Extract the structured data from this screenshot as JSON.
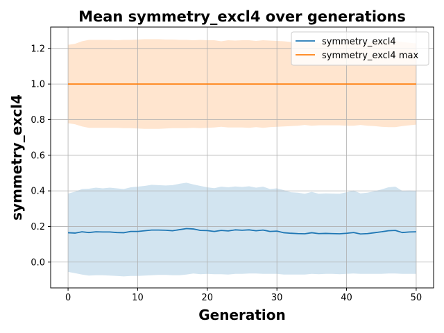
{
  "chart_data": {
    "type": "line",
    "title": "Mean symmetry_excl4 over generations",
    "xlabel": "Generation",
    "ylabel": "symmetry_excl4",
    "xlim": [
      -2.5,
      52.5
    ],
    "ylim": [
      -0.145,
      1.32
    ],
    "x_ticks": [
      0,
      10,
      20,
      30,
      40,
      50
    ],
    "y_ticks": [
      0.0,
      0.2,
      0.4,
      0.6,
      0.8,
      1.0,
      1.2
    ],
    "x_tick_labels": [
      "0",
      "10",
      "20",
      "30",
      "40",
      "50"
    ],
    "y_tick_labels": [
      "0.0",
      "0.2",
      "0.4",
      "0.6",
      "0.8",
      "1.0",
      "1.2"
    ],
    "grid": true,
    "legend_position": "top-right",
    "x": [
      0,
      1,
      2,
      3,
      4,
      5,
      6,
      7,
      8,
      9,
      10,
      11,
      12,
      13,
      14,
      15,
      16,
      17,
      18,
      19,
      20,
      21,
      22,
      23,
      24,
      25,
      26,
      27,
      28,
      29,
      30,
      31,
      32,
      33,
      34,
      35,
      36,
      37,
      38,
      39,
      40,
      41,
      42,
      43,
      44,
      45,
      46,
      47,
      48,
      49,
      50
    ],
    "series": [
      {
        "name": "symmetry_excl4",
        "color": "#1f77b4",
        "band_color": "#1f77b4",
        "values": [
          0.165,
          0.163,
          0.17,
          0.166,
          0.17,
          0.169,
          0.169,
          0.166,
          0.165,
          0.172,
          0.172,
          0.176,
          0.18,
          0.18,
          0.179,
          0.176,
          0.182,
          0.188,
          0.186,
          0.178,
          0.177,
          0.172,
          0.178,
          0.175,
          0.181,
          0.179,
          0.181,
          0.176,
          0.18,
          0.172,
          0.174,
          0.165,
          0.162,
          0.16,
          0.159,
          0.165,
          0.16,
          0.161,
          0.16,
          0.159,
          0.162,
          0.166,
          0.158,
          0.16,
          0.165,
          0.17,
          0.176,
          0.178,
          0.166,
          0.169,
          0.17
        ],
        "band_upper": [
          0.385,
          0.395,
          0.41,
          0.412,
          0.418,
          0.414,
          0.418,
          0.414,
          0.41,
          0.42,
          0.424,
          0.428,
          0.434,
          0.432,
          0.43,
          0.432,
          0.44,
          0.446,
          0.436,
          0.428,
          0.42,
          0.415,
          0.424,
          0.42,
          0.425,
          0.422,
          0.426,
          0.418,
          0.424,
          0.41,
          0.414,
          0.404,
          0.392,
          0.39,
          0.384,
          0.394,
          0.384,
          0.386,
          0.385,
          0.384,
          0.392,
          0.402,
          0.386,
          0.39,
          0.398,
          0.408,
          0.42,
          0.424,
          0.4,
          0.402,
          0.4
        ],
        "band_lower": [
          -0.055,
          -0.062,
          -0.07,
          -0.076,
          -0.074,
          -0.074,
          -0.076,
          -0.078,
          -0.08,
          -0.078,
          -0.078,
          -0.076,
          -0.074,
          -0.072,
          -0.072,
          -0.074,
          -0.074,
          -0.07,
          -0.064,
          -0.068,
          -0.066,
          -0.068,
          -0.068,
          -0.07,
          -0.066,
          -0.066,
          -0.064,
          -0.064,
          -0.066,
          -0.066,
          -0.066,
          -0.07,
          -0.07,
          -0.07,
          -0.07,
          -0.066,
          -0.068,
          -0.066,
          -0.066,
          -0.068,
          -0.066,
          -0.064,
          -0.066,
          -0.066,
          -0.066,
          -0.066,
          -0.064,
          -0.064,
          -0.066,
          -0.066,
          -0.066
        ]
      },
      {
        "name": "symmetry_excl4 max",
        "color": "#ff7f0e",
        "band_color": "#ff7f0e",
        "values": [
          1,
          1,
          1,
          1,
          1,
          1,
          1,
          1,
          1,
          1,
          1,
          1,
          1,
          1,
          1,
          1,
          1,
          1,
          1,
          1,
          1,
          1,
          1,
          1,
          1,
          1,
          1,
          1,
          1,
          1,
          1,
          1,
          1,
          1,
          1,
          1,
          1,
          1,
          1,
          1,
          1,
          1,
          1,
          1,
          1,
          1,
          1,
          1,
          1,
          1,
          1
        ],
        "band_upper": [
          1.22,
          1.226,
          1.24,
          1.248,
          1.248,
          1.248,
          1.248,
          1.246,
          1.248,
          1.248,
          1.25,
          1.252,
          1.252,
          1.252,
          1.25,
          1.25,
          1.248,
          1.248,
          1.246,
          1.248,
          1.246,
          1.246,
          1.24,
          1.246,
          1.244,
          1.246,
          1.246,
          1.242,
          1.246,
          1.244,
          1.242,
          1.24,
          1.236,
          1.234,
          1.23,
          1.234,
          1.232,
          1.232,
          1.232,
          1.232,
          1.234,
          1.234,
          1.232,
          1.234,
          1.236,
          1.24,
          1.242,
          1.242,
          1.236,
          1.232,
          1.228
        ],
        "band_lower": [
          0.78,
          0.774,
          0.762,
          0.754,
          0.754,
          0.754,
          0.754,
          0.754,
          0.752,
          0.752,
          0.75,
          0.748,
          0.748,
          0.748,
          0.75,
          0.752,
          0.752,
          0.752,
          0.754,
          0.752,
          0.754,
          0.756,
          0.76,
          0.756,
          0.756,
          0.756,
          0.754,
          0.758,
          0.754,
          0.758,
          0.76,
          0.762,
          0.764,
          0.766,
          0.77,
          0.766,
          0.768,
          0.768,
          0.768,
          0.768,
          0.766,
          0.766,
          0.77,
          0.766,
          0.764,
          0.76,
          0.758,
          0.758,
          0.764,
          0.768,
          0.772
        ]
      }
    ]
  }
}
